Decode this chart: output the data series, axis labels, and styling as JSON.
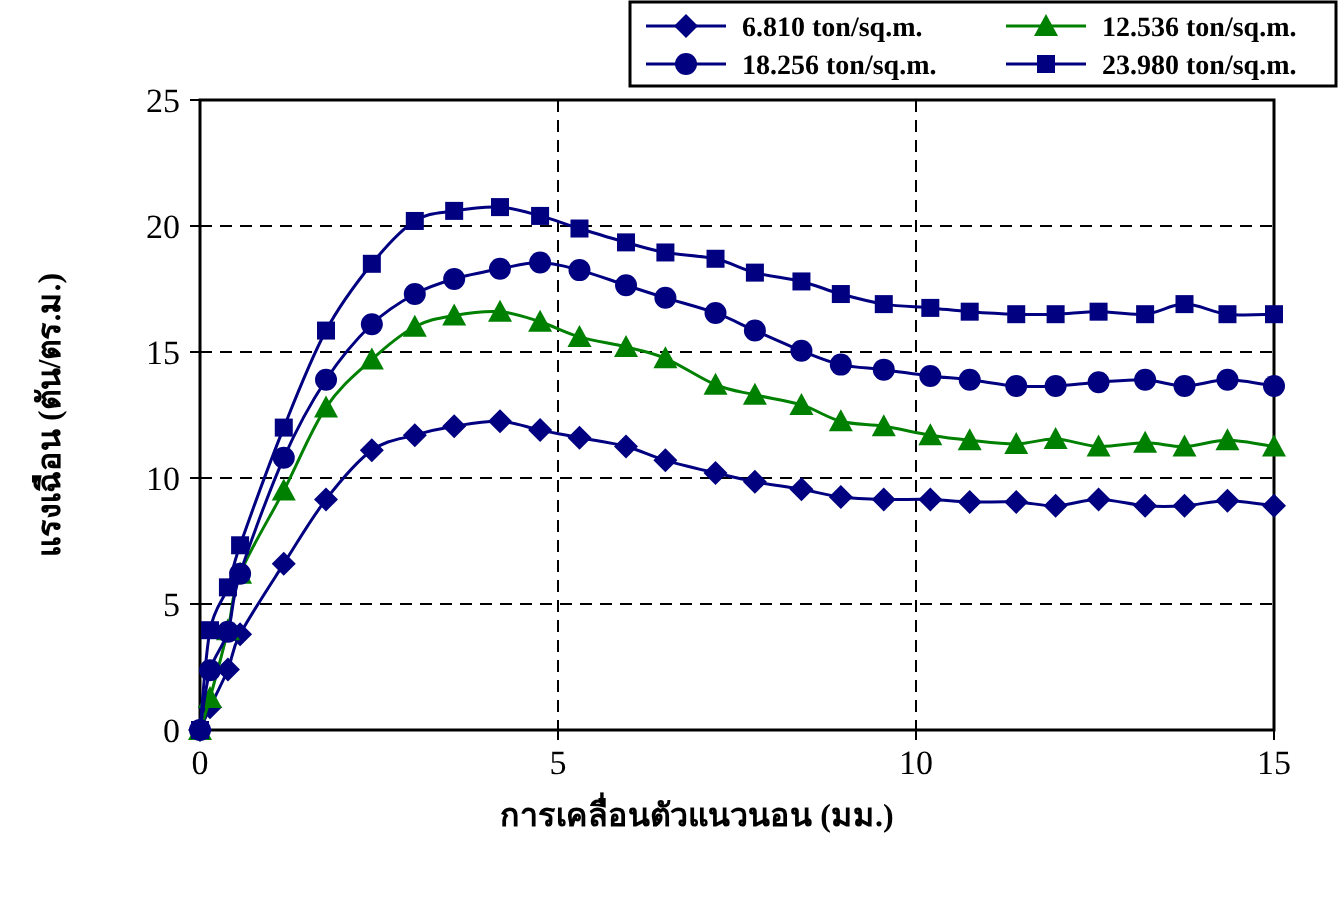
{
  "chart_data": {
    "type": "line",
    "xlabel": "การเคลื่อนตัวแนวนอน (มม.)",
    "ylabel": "แรงเฉือน (ตัน/ตร.ม.)",
    "x": [
      0,
      0.14,
      0.39,
      0.56,
      1.17,
      1.76,
      2.4,
      3.0,
      3.55,
      4.19,
      4.75,
      5.3,
      5.95,
      6.5,
      7.2,
      7.75,
      8.4,
      8.95,
      9.55,
      10.2,
      10.75,
      11.4,
      11.95,
      12.55,
      13.2,
      13.75,
      14.35,
      15
    ],
    "series": [
      {
        "name": "6.810 ton/sq.m.",
        "color": "#000080",
        "marker": "diamond",
        "values": [
          0,
          0.9,
          2.4,
          3.8,
          6.6,
          9.15,
          11.1,
          11.7,
          12.05,
          12.25,
          11.9,
          11.6,
          11.25,
          10.7,
          10.2,
          9.85,
          9.55,
          9.25,
          9.15,
          9.15,
          9.05,
          9.05,
          8.9,
          9.15,
          8.9,
          8.9,
          9.1,
          8.9
        ]
      },
      {
        "name": "12.536 ton/sq.m.",
        "color": "#008000",
        "marker": "triangle",
        "values": [
          0,
          1.27,
          3.96,
          6.2,
          9.5,
          12.8,
          14.7,
          16.0,
          16.45,
          16.6,
          16.2,
          15.6,
          15.2,
          14.75,
          13.7,
          13.3,
          12.9,
          12.25,
          12.05,
          11.7,
          11.5,
          11.35,
          11.55,
          11.25,
          11.4,
          11.25,
          11.5,
          11.25
        ]
      },
      {
        "name": "18.256 ton/sq.m.",
        "color": "#000080",
        "marker": "circle",
        "values": [
          0,
          2.37,
          3.9,
          6.2,
          10.8,
          13.9,
          16.1,
          17.3,
          17.9,
          18.3,
          18.55,
          18.25,
          17.65,
          17.15,
          16.55,
          15.85,
          15.05,
          14.5,
          14.3,
          14.05,
          13.9,
          13.65,
          13.65,
          13.8,
          13.9,
          13.65,
          13.9,
          13.65
        ]
      },
      {
        "name": "23.980 ton/sq.m.",
        "color": "#000080",
        "marker": "square",
        "values": [
          0,
          3.96,
          5.66,
          7.33,
          12.0,
          15.85,
          18.5,
          20.2,
          20.6,
          20.75,
          20.4,
          19.9,
          19.35,
          18.95,
          18.7,
          18.15,
          17.8,
          17.3,
          16.9,
          16.75,
          16.6,
          16.5,
          16.5,
          16.6,
          16.5,
          16.9,
          16.5,
          16.5
        ]
      }
    ],
    "xlim": [
      0,
      15
    ],
    "xticks": [
      0,
      5,
      10,
      15
    ],
    "ylim": [
      0,
      25
    ],
    "yticks": [
      0,
      5,
      10,
      15,
      20,
      25
    ],
    "grid": true,
    "legend": "top right"
  }
}
